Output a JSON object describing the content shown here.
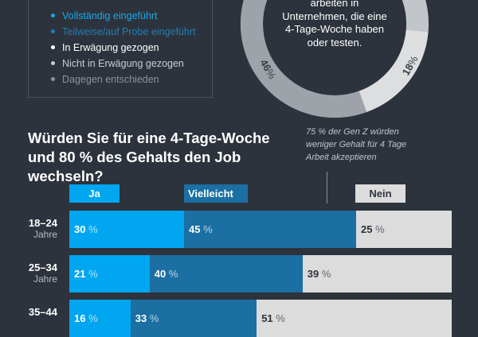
{
  "legend": {
    "items": [
      {
        "label": "Vollständig eingeführt",
        "color": "#1aa7ec"
      },
      {
        "label": "Teilweise/auf Probe eingeführt",
        "color": "#1f7fb6"
      },
      {
        "label": "In Erwägung gezogen",
        "color": "#ffffff"
      },
      {
        "label": "Nicht in Erwägung gezogen",
        "color": "#c9cdd2"
      },
      {
        "label": "Dagegen entschieden",
        "color": "#8d939a"
      }
    ]
  },
  "donut": {
    "text_lines": [
      "arbeiten in",
      "Unternehmen, die eine",
      "4-Tage-Woche haben",
      "oder testen."
    ],
    "segments": [
      {
        "label": "46",
        "value": 46,
        "color": "#9ea3a9"
      },
      {
        "label": "18",
        "value": 18,
        "color": "#dcdee0"
      }
    ],
    "unit": "%"
  },
  "chart_data": {
    "type": "bar",
    "stacked": true,
    "orientation": "horizontal",
    "title": "Würden Sie für eine 4-Tage-Woche und 80 % des Gehalts den Job wechseln?",
    "annotation": "75 % der Gen Z würden weniger Gehalt für 4 Tage Arbeit akzeptieren",
    "categories": [
      {
        "range": "18–24",
        "unit": "Jahre"
      },
      {
        "range": "25–34",
        "unit": "Jahre"
      },
      {
        "range": "35–44",
        "unit": ""
      }
    ],
    "series": [
      {
        "name": "Ja",
        "color": "#00a6f0",
        "values": [
          30,
          21,
          16
        ]
      },
      {
        "name": "Vielleicht",
        "color": "#1b6fa3",
        "values": [
          45,
          40,
          33
        ]
      },
      {
        "name": "Nein",
        "color": "#dcdcdc",
        "values": [
          25,
          39,
          51
        ]
      }
    ],
    "value_suffix": "%",
    "xlim": [
      0,
      100
    ]
  }
}
